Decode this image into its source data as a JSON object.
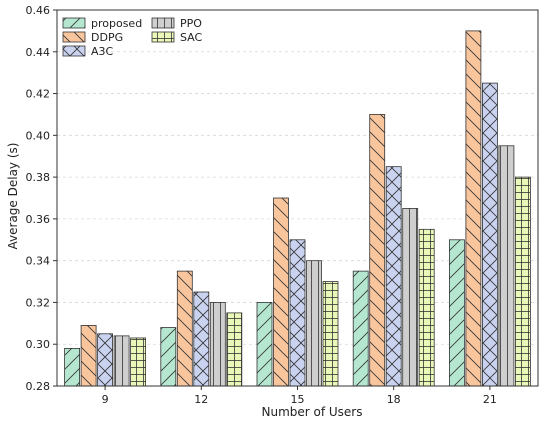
{
  "chart_data": {
    "type": "bar",
    "xlabel": "Number of Users",
    "ylabel": "Average Delay (s)",
    "categories": [
      "9",
      "12",
      "15",
      "18",
      "21"
    ],
    "ylim": [
      0.28,
      0.46
    ],
    "yticks": [
      "0.28",
      "0.30",
      "0.32",
      "0.34",
      "0.36",
      "0.38",
      "0.40",
      "0.42",
      "0.44",
      "0.46"
    ],
    "grid": "horizontal dashed",
    "legend_position": "top-left",
    "series": [
      {
        "name": "proposed",
        "values": [
          0.298,
          0.308,
          0.32,
          0.335,
          0.35
        ],
        "color": "#b5e6cf",
        "hatch": "forward-diagonal"
      },
      {
        "name": "DDPG",
        "values": [
          0.309,
          0.335,
          0.37,
          0.41,
          0.45
        ],
        "color": "#f8c59d",
        "hatch": "back-diagonal"
      },
      {
        "name": "A3C",
        "values": [
          0.305,
          0.325,
          0.35,
          0.385,
          0.425
        ],
        "color": "#c9d3ef",
        "hatch": "cross"
      },
      {
        "name": "PPO",
        "values": [
          0.304,
          0.32,
          0.34,
          0.365,
          0.395
        ],
        "color": "#cfcfcf",
        "hatch": "vertical"
      },
      {
        "name": "SAC",
        "values": [
          0.303,
          0.315,
          0.33,
          0.355,
          0.38
        ],
        "color": "#e9f7b8",
        "hatch": "grid"
      }
    ]
  }
}
